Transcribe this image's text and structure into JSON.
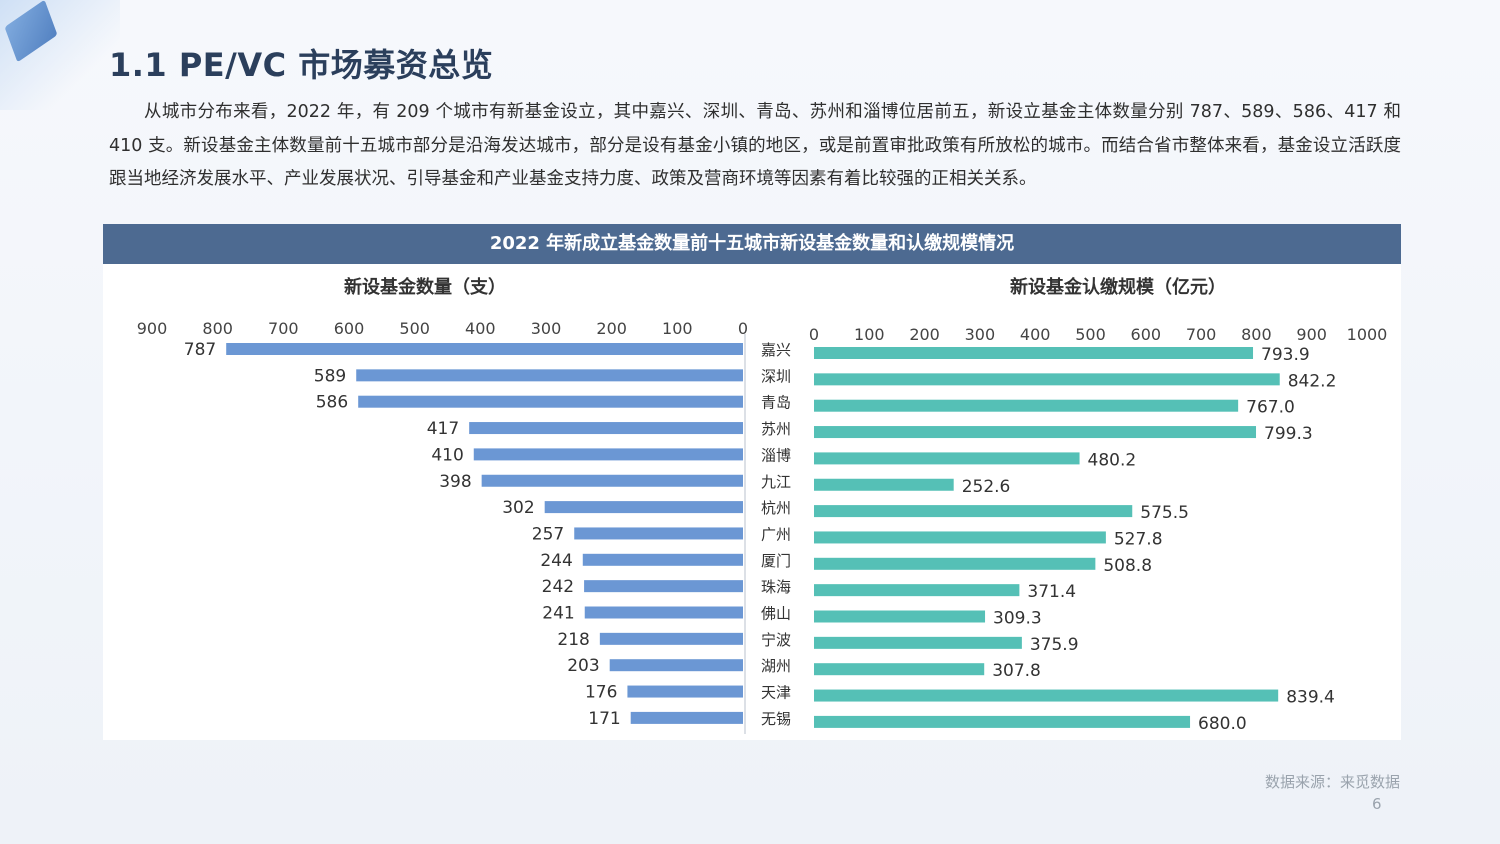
{
  "page": {
    "title": "1.1  PE/VC 市场募资总览",
    "intro": "从城市分布来看，2022 年，有 209 个城市有新基金设立，其中嘉兴、深圳、青岛、苏州和淄博位居前五，新设立基金主体数量分别 787、589、586、417 和 410 支。新设基金主体数量前十五城市部分是沿海发达城市，部分是设有基金小镇的地区，或是前置审批政策有所放松的城市。而结合省市整体来看，基金设立活跃度跟当地经济发展水平、产业发展状况、引导基金和产业基金支持力度、政策及营商环境等因素有着比较强的正相关关系。",
    "source": "数据来源：来觅数据",
    "page_number": "6"
  },
  "colors": {
    "header_bg": "#4d6a91",
    "left_bar": "#6b97d4",
    "right_bar": "#55c0b6",
    "title_text": "#2b3f5c"
  },
  "chart_data": {
    "type": "bar",
    "title": "2022 年新成立基金数量前十五城市新设基金数量和认缴规模情况",
    "categories": [
      "嘉兴",
      "深圳",
      "青岛",
      "苏州",
      "淄博",
      "九江",
      "杭州",
      "广州",
      "厦门",
      "珠海",
      "佛山",
      "宁波",
      "湖州",
      "天津",
      "无锡"
    ],
    "left": {
      "name": "新设基金数量（支）",
      "values": [
        787,
        589,
        586,
        417,
        410,
        398,
        302,
        257,
        244,
        242,
        241,
        218,
        203,
        176,
        171
      ],
      "labels": [
        "787",
        "589",
        "586",
        "417",
        "410",
        "398",
        "302",
        "257",
        "244",
        "242",
        "241",
        "218",
        "203",
        "176",
        "171"
      ],
      "ticks": [
        "900",
        "800",
        "700",
        "600",
        "500",
        "400",
        "300",
        "200",
        "100",
        "0"
      ],
      "xlim": [
        0,
        900
      ]
    },
    "right": {
      "name": "新设基金认缴规模（亿元）",
      "values": [
        793.9,
        842.2,
        767.0,
        799.3,
        480.2,
        252.6,
        575.5,
        527.8,
        508.8,
        371.4,
        309.3,
        375.9,
        307.8,
        839.4,
        680.0
      ],
      "labels": [
        "793.9",
        "842.2",
        "767.0",
        "799.3",
        "480.2",
        "252.6",
        "575.5",
        "527.8",
        "508.8",
        "371.4",
        "309.3",
        "375.9",
        "307.8",
        "839.4",
        "680.0"
      ],
      "ticks": [
        "0",
        "100",
        "200",
        "300",
        "400",
        "500",
        "600",
        "700",
        "800",
        "900",
        "1000"
      ],
      "xlim": [
        0,
        1000
      ]
    },
    "grid": false
  }
}
